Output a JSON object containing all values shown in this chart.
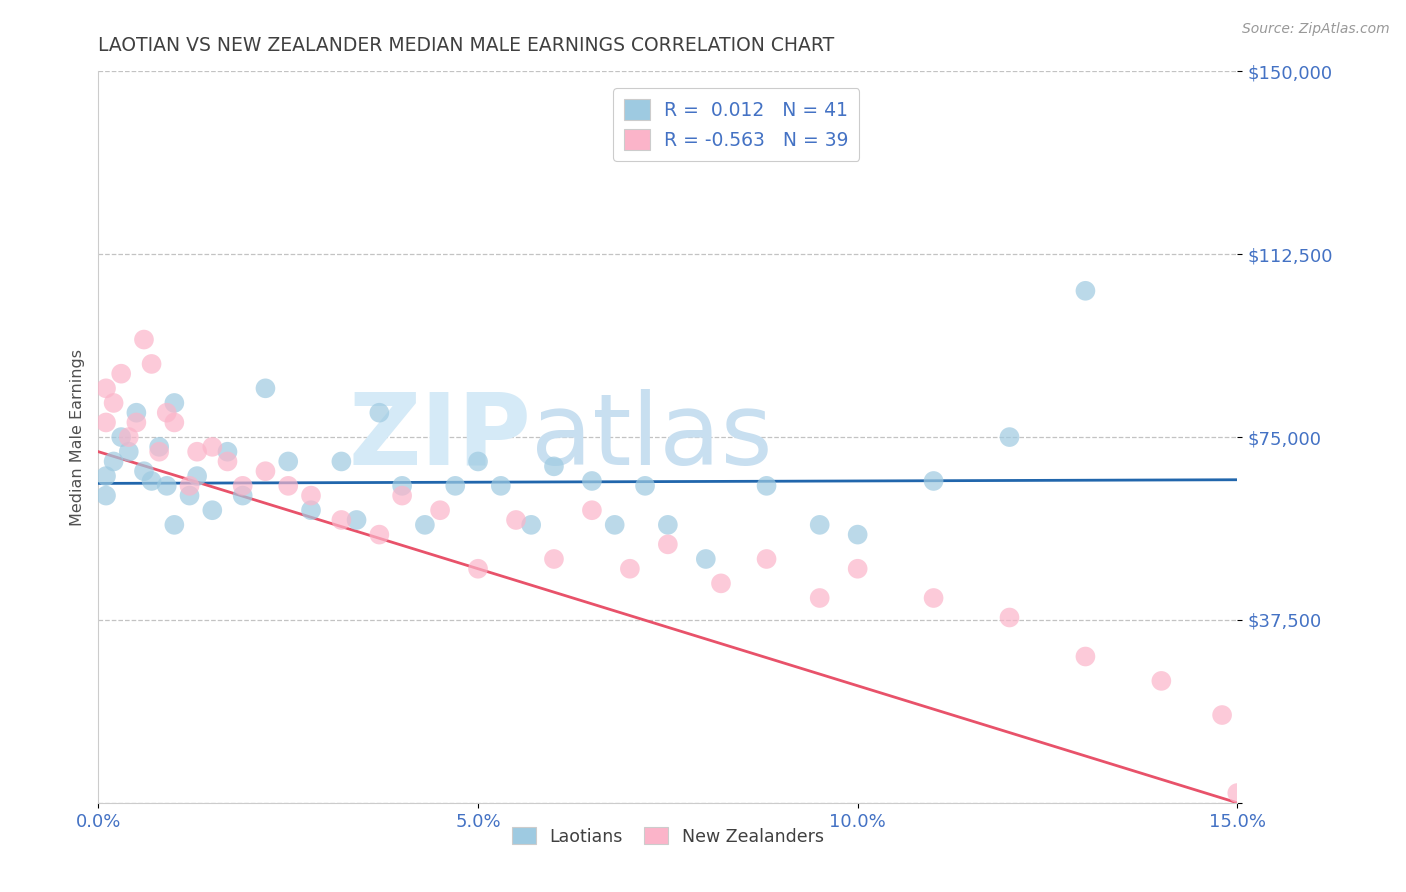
{
  "title": "LAOTIAN VS NEW ZEALANDER MEDIAN MALE EARNINGS CORRELATION CHART",
  "source_text": "Source: ZipAtlas.com",
  "ylabel": "Median Male Earnings",
  "xlim": [
    0.0,
    0.15
  ],
  "ylim": [
    0,
    150000
  ],
  "yticks": [
    0,
    37500,
    75000,
    112500,
    150000
  ],
  "ytick_labels": [
    "",
    "$37,500",
    "$75,000",
    "$112,500",
    "$150,000"
  ],
  "xticks": [
    0.0,
    0.05,
    0.1,
    0.15
  ],
  "xtick_labels": [
    "0.0%",
    "5.0%",
    "10.0%",
    "15.0%"
  ],
  "legend_r1": "R =  0.012   N = 41",
  "legend_r2": "R = -0.563   N = 39",
  "blue_scatter_color": "#9ecae1",
  "pink_scatter_color": "#fbb4c9",
  "blue_line_color": "#2166ac",
  "pink_line_color": "#e8526a",
  "axis_tick_color": "#4472c4",
  "title_color": "#404040",
  "grid_color": "#aaaaaa",
  "laotian_x": [
    0.001,
    0.001,
    0.002,
    0.003,
    0.004,
    0.005,
    0.006,
    0.007,
    0.008,
    0.009,
    0.01,
    0.01,
    0.012,
    0.013,
    0.015,
    0.017,
    0.019,
    0.022,
    0.025,
    0.028,
    0.032,
    0.034,
    0.037,
    0.04,
    0.043,
    0.047,
    0.05,
    0.053,
    0.057,
    0.06,
    0.065,
    0.068,
    0.072,
    0.075,
    0.08,
    0.088,
    0.095,
    0.1,
    0.11,
    0.12,
    0.13
  ],
  "laotian_y": [
    67000,
    63000,
    70000,
    75000,
    72000,
    80000,
    68000,
    66000,
    73000,
    65000,
    82000,
    57000,
    63000,
    67000,
    60000,
    72000,
    63000,
    85000,
    70000,
    60000,
    70000,
    58000,
    80000,
    65000,
    57000,
    65000,
    70000,
    65000,
    57000,
    69000,
    66000,
    57000,
    65000,
    57000,
    50000,
    65000,
    57000,
    55000,
    66000,
    75000,
    105000
  ],
  "nz_x": [
    0.001,
    0.001,
    0.002,
    0.003,
    0.004,
    0.005,
    0.006,
    0.007,
    0.008,
    0.009,
    0.01,
    0.012,
    0.013,
    0.015,
    0.017,
    0.019,
    0.022,
    0.025,
    0.028,
    0.032,
    0.037,
    0.04,
    0.045,
    0.05,
    0.055,
    0.06,
    0.065,
    0.07,
    0.075,
    0.082,
    0.088,
    0.095,
    0.1,
    0.11,
    0.12,
    0.13,
    0.14,
    0.148,
    0.15
  ],
  "nz_y": [
    78000,
    85000,
    82000,
    88000,
    75000,
    78000,
    95000,
    90000,
    72000,
    80000,
    78000,
    65000,
    72000,
    73000,
    70000,
    65000,
    68000,
    65000,
    63000,
    58000,
    55000,
    63000,
    60000,
    48000,
    58000,
    50000,
    60000,
    48000,
    53000,
    45000,
    50000,
    42000,
    48000,
    42000,
    38000,
    30000,
    25000,
    18000,
    2000
  ]
}
